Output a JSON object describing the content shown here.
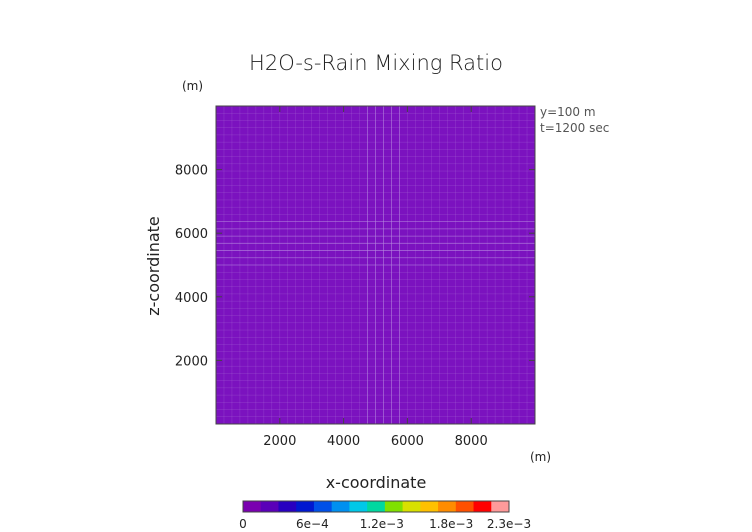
{
  "chart_data": {
    "type": "heatmap",
    "title": "H2O-s-Rain Mixing Ratio",
    "xlabel": "x-coordinate",
    "ylabel": "z-coordinate",
    "x_unit": "(m)",
    "y_unit": "(m)",
    "xlim": [
      0,
      10000
    ],
    "ylim": [
      0,
      10000
    ],
    "x_ticks": [
      "2000",
      "4000",
      "6000",
      "8000"
    ],
    "x_tick_values": [
      2000,
      4000,
      6000,
      8000
    ],
    "y_ticks": [
      "2000",
      "4000",
      "6000",
      "8000"
    ],
    "y_tick_values": [
      2000,
      4000,
      6000,
      8000
    ],
    "field_value": 0,
    "field_color": "#7b12bf",
    "annotations": [
      "y=100 m",
      "t=1200 sec"
    ],
    "colorbar": {
      "min": 0,
      "max": 0.0023,
      "tick_labels": [
        "0",
        "6e−4",
        "1.2e−3",
        "1.8e−3",
        "2.3e−3"
      ],
      "tick_values": [
        0,
        0.0006,
        0.0012,
        0.0018,
        0.0023
      ],
      "colors": [
        "#7a00b0",
        "#5a00b8",
        "#2800c0",
        "#0018d0",
        "#0050e8",
        "#0090f0",
        "#00c8e8",
        "#00d8a0",
        "#80e000",
        "#d8e000",
        "#ffc000",
        "#ff8c00",
        "#ff5000",
        "#ff0000",
        "#ff9a9a"
      ]
    }
  }
}
